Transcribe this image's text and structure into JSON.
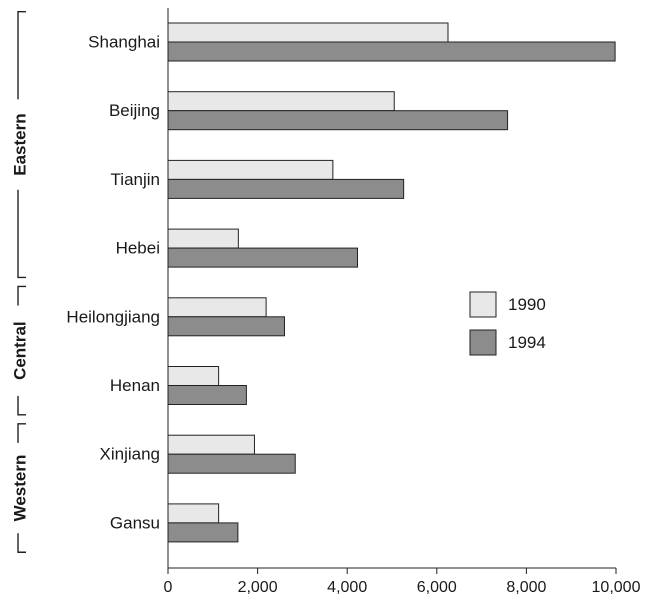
{
  "chart_data": {
    "type": "bar",
    "orientation": "horizontal",
    "categories": [
      "Shanghai",
      "Beijing",
      "Tianjin",
      "Hebei",
      "Heilongjiang",
      "Henan",
      "Xinjiang",
      "Gansu"
    ],
    "series": [
      {
        "name": "1990",
        "color": "#e8e8e8",
        "values": [
          6250,
          5050,
          3680,
          1570,
          2190,
          1130,
          1930,
          1130
        ]
      },
      {
        "name": "1994",
        "color": "#8c8c8c",
        "values": [
          9980,
          7580,
          5260,
          4230,
          2600,
          1750,
          2840,
          1560
        ]
      }
    ],
    "groups": [
      {
        "label": "Eastern",
        "categories": [
          "Shanghai",
          "Beijing",
          "Tianjin",
          "Hebei"
        ]
      },
      {
        "label": "Central",
        "categories": [
          "Heilongjiang",
          "Henan"
        ]
      },
      {
        "label": "Western",
        "categories": [
          "Xinjiang",
          "Gansu"
        ]
      }
    ],
    "xlim": [
      0,
      10000
    ],
    "xticks": [
      0,
      2000,
      4000,
      6000,
      8000,
      10000
    ],
    "xtick_labels": [
      "0",
      "2,000",
      "4,000",
      "6,000",
      "8,000",
      "10,000"
    ],
    "title": "",
    "xlabel": "",
    "ylabel": "",
    "grid": false,
    "legend_position": "right"
  }
}
